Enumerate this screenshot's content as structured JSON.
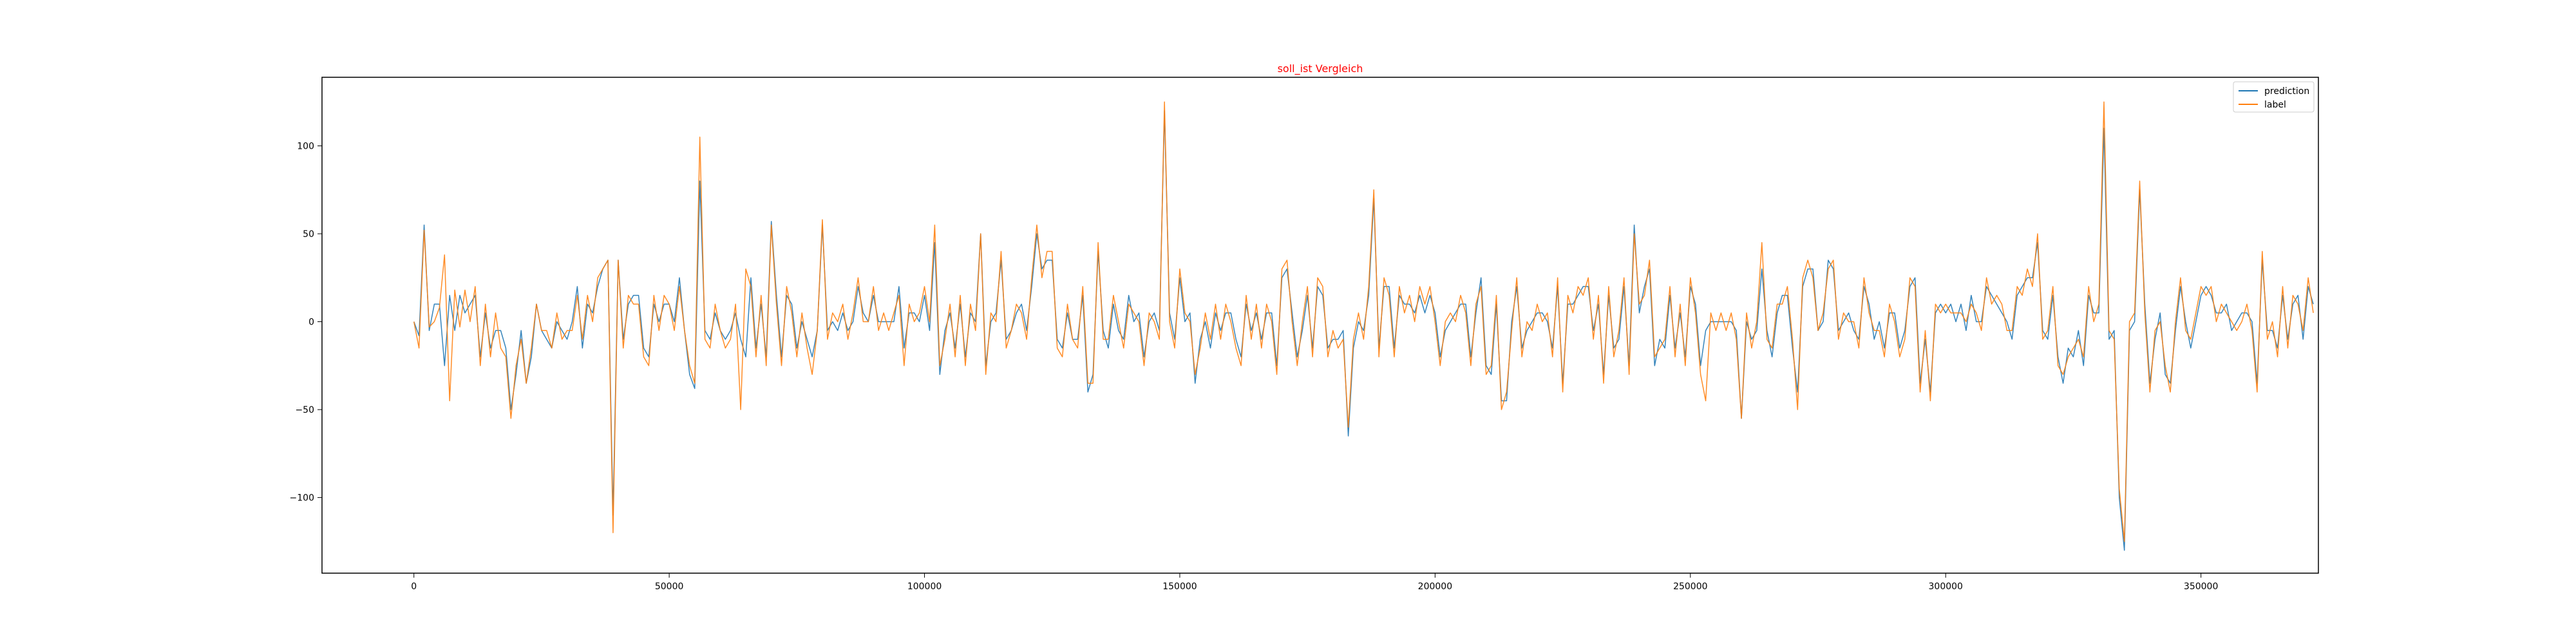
{
  "chart_data": {
    "type": "line",
    "title": "soll_ist Vergleich",
    "xlabel": "",
    "ylabel": "",
    "xlim": [
      -18000,
      373000
    ],
    "ylim": [
      -143,
      139
    ],
    "x_ticks": [
      0,
      50000,
      100000,
      150000,
      200000,
      250000,
      300000,
      350000
    ],
    "y_ticks": [
      -100,
      -50,
      0,
      50,
      100
    ],
    "x_tick_labels": [
      "0",
      "50000",
      "100000",
      "150000",
      "200000",
      "250000",
      "300000",
      "350000"
    ],
    "y_tick_labels": [
      "−100",
      "−50",
      "0",
      "50",
      "100"
    ],
    "legend_position": "top-right",
    "grid": false,
    "x_step": 1000,
    "series": [
      {
        "name": "prediction",
        "color": "#1f77b4",
        "values": [
          0,
          -8,
          55,
          -5,
          10,
          10,
          -25,
          15,
          -5,
          15,
          5,
          10,
          15,
          -20,
          5,
          -15,
          -5,
          -5,
          -15,
          -50,
          -30,
          -5,
          -35,
          -20,
          10,
          -5,
          -10,
          -15,
          0,
          -5,
          -10,
          0,
          20,
          -15,
          10,
          5,
          20,
          30,
          35,
          -110,
          35,
          -10,
          10,
          15,
          15,
          -15,
          -20,
          10,
          0,
          10,
          10,
          0,
          25,
          -5,
          -30,
          -38,
          80,
          -5,
          -10,
          5,
          -5,
          -10,
          -5,
          5,
          -10,
          -20,
          25,
          -15,
          10,
          -20,
          57,
          15,
          -20,
          15,
          10,
          -15,
          0,
          -10,
          -20,
          -5,
          55,
          -5,
          0,
          -5,
          5,
          -5,
          0,
          20,
          5,
          0,
          15,
          0,
          0,
          0,
          0,
          20,
          -15,
          5,
          5,
          0,
          15,
          -5,
          45,
          -30,
          -5,
          5,
          -15,
          10,
          -20,
          5,
          0,
          50,
          -25,
          0,
          5,
          35,
          -10,
          -5,
          5,
          10,
          -5,
          20,
          50,
          30,
          35,
          35,
          -10,
          -15,
          5,
          -10,
          -10,
          15,
          -40,
          -30,
          40,
          -5,
          -15,
          10,
          -5,
          -10,
          15,
          0,
          5,
          -20,
          0,
          5,
          -5,
          120,
          5,
          -10,
          25,
          0,
          5,
          -35,
          -10,
          0,
          -15,
          5,
          -5,
          5,
          5,
          -10,
          -20,
          10,
          -5,
          5,
          -10,
          5,
          5,
          -25,
          25,
          30,
          5,
          -20,
          -5,
          15,
          -15,
          20,
          15,
          -15,
          -10,
          -10,
          -5,
          -65,
          -15,
          0,
          -5,
          15,
          70,
          -15,
          20,
          20,
          -15,
          15,
          10,
          10,
          5,
          15,
          5,
          15,
          5,
          -20,
          -5,
          0,
          5,
          10,
          10,
          -20,
          5,
          25,
          -25,
          -30,
          10,
          -45,
          -45,
          0,
          20,
          -15,
          -5,
          0,
          5,
          5,
          0,
          -15,
          20,
          -35,
          10,
          10,
          15,
          20,
          20,
          -5,
          10,
          -30,
          15,
          -15,
          -10,
          20,
          -25,
          55,
          5,
          20,
          30,
          -25,
          -10,
          -15,
          15,
          -15,
          5,
          -20,
          20,
          10,
          -25,
          -5,
          0,
          0,
          0,
          0,
          0,
          -5,
          -55,
          0,
          -10,
          -5,
          30,
          -5,
          -20,
          5,
          15,
          15,
          -15,
          -40,
          20,
          30,
          30,
          -5,
          0,
          35,
          30,
          -5,
          0,
          5,
          -5,
          -10,
          20,
          10,
          -10,
          0,
          -15,
          5,
          5,
          -15,
          -5,
          20,
          25,
          -35,
          -10,
          -40,
          5,
          10,
          5,
          10,
          0,
          10,
          -5,
          15,
          0,
          0,
          20,
          15,
          10,
          5,
          0,
          -10,
          15,
          20,
          25,
          25,
          45,
          -5,
          -10,
          15,
          -20,
          -35,
          -15,
          -20,
          -5,
          -25,
          15,
          5,
          5,
          110,
          -10,
          -5,
          -100,
          -130,
          -5,
          0,
          75,
          10,
          -35,
          -10,
          5,
          -30,
          -35,
          -5,
          20,
          0,
          -15,
          0,
          15,
          20,
          15,
          5,
          5,
          10,
          -5,
          0,
          5,
          5,
          0,
          -35,
          35,
          -5,
          -5,
          -15,
          15,
          -10,
          10,
          15,
          -10,
          20,
          10
        ]
      },
      {
        "name": "label",
        "color": "#ff7f0e",
        "values": [
          0,
          -15,
          52,
          -3,
          0,
          8,
          38,
          -45,
          18,
          -3,
          18,
          0,
          20,
          -25,
          10,
          -20,
          5,
          -15,
          -20,
          -55,
          -25,
          -10,
          -35,
          -15,
          10,
          -5,
          -5,
          -15,
          5,
          -10,
          -5,
          -5,
          15,
          -10,
          15,
          0,
          25,
          30,
          35,
          -120,
          35,
          -15,
          15,
          10,
          10,
          -20,
          -25,
          15,
          -5,
          15,
          10,
          -5,
          20,
          -5,
          -25,
          -35,
          105,
          -10,
          -15,
          10,
          -5,
          -15,
          -10,
          10,
          -50,
          30,
          20,
          -20,
          15,
          -25,
          55,
          10,
          -25,
          20,
          5,
          -20,
          5,
          -15,
          -30,
          -5,
          58,
          -10,
          5,
          0,
          10,
          -10,
          5,
          25,
          0,
          0,
          20,
          -5,
          5,
          -5,
          5,
          15,
          -25,
          10,
          0,
          5,
          20,
          0,
          55,
          -25,
          -10,
          10,
          -20,
          15,
          -25,
          10,
          -5,
          50,
          -30,
          5,
          0,
          40,
          -15,
          -5,
          10,
          5,
          -10,
          25,
          55,
          25,
          40,
          40,
          -15,
          -20,
          10,
          -10,
          -15,
          20,
          -35,
          -35,
          45,
          -10,
          -10,
          15,
          0,
          -15,
          10,
          5,
          0,
          -25,
          5,
          0,
          -10,
          125,
          0,
          -15,
          30,
          5,
          0,
          -30,
          -15,
          5,
          -10,
          10,
          -10,
          10,
          0,
          -15,
          -25,
          15,
          -10,
          10,
          -15,
          10,
          0,
          -30,
          30,
          35,
          0,
          -25,
          0,
          20,
          -20,
          25,
          20,
          -20,
          -5,
          -15,
          -10,
          -60,
          -10,
          5,
          -10,
          20,
          75,
          -20,
          25,
          15,
          -20,
          20,
          5,
          15,
          0,
          20,
          10,
          20,
          0,
          -25,
          0,
          5,
          0,
          15,
          5,
          -25,
          10,
          20,
          -30,
          -25,
          15,
          -50,
          -40,
          -5,
          25,
          -20,
          0,
          -5,
          10,
          0,
          5,
          -20,
          25,
          -40,
          15,
          5,
          20,
          15,
          25,
          -10,
          15,
          -35,
          20,
          -20,
          -5,
          25,
          -30,
          50,
          10,
          15,
          35,
          -20,
          -15,
          -10,
          20,
          -20,
          10,
          -25,
          25,
          5,
          -30,
          -45,
          5,
          -5,
          5,
          -5,
          5,
          -10,
          -55,
          5,
          -15,
          0,
          45,
          -10,
          -15,
          10,
          10,
          20,
          -10,
          -50,
          25,
          35,
          25,
          -5,
          5,
          30,
          35,
          -10,
          5,
          0,
          0,
          -15,
          25,
          5,
          -5,
          -5,
          -20,
          10,
          0,
          -20,
          -10,
          25,
          20,
          -40,
          -5,
          -45,
          10,
          5,
          10,
          5,
          5,
          5,
          0,
          10,
          5,
          -5,
          25,
          10,
          15,
          10,
          -5,
          -5,
          20,
          15,
          30,
          20,
          50,
          -10,
          -5,
          20,
          -25,
          -30,
          -20,
          -15,
          -10,
          -20,
          20,
          0,
          10,
          125,
          -5,
          -10,
          -95,
          -125,
          0,
          5,
          80,
          5,
          -40,
          -5,
          0,
          -25,
          -40,
          0,
          25,
          -5,
          -10,
          5,
          20,
          15,
          20,
          0,
          10,
          5,
          0,
          -5,
          0,
          10,
          -5,
          -40,
          40,
          -10,
          0,
          -20,
          20,
          -15,
          15,
          10,
          -5,
          25,
          5
        ]
      }
    ]
  }
}
